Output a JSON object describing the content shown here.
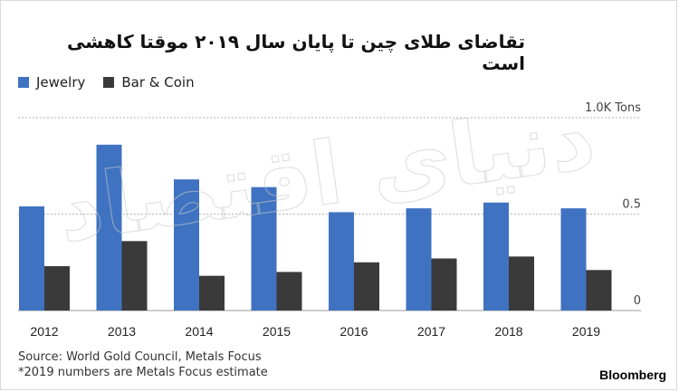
{
  "header": {
    "title": "تقاضای طلای چین تا پایان سال ۲۰۱۹ موقتا کاهشی است"
  },
  "legend": {
    "items": [
      {
        "label": "Jewelry",
        "color": "#3f73c1"
      },
      {
        "label": "Bar & Coin",
        "color": "#3a3a3a"
      }
    ]
  },
  "chart_data": {
    "type": "bar",
    "categories": [
      "2012",
      "2013",
      "2014",
      "2015",
      "2016",
      "2017",
      "2018",
      "2019"
    ],
    "series": [
      {
        "name": "Jewelry",
        "values": [
          0.54,
          0.86,
          0.68,
          0.64,
          0.51,
          0.53,
          0.56,
          0.53
        ],
        "color": "#3f73c1"
      },
      {
        "name": "Bar & Coin",
        "values": [
          0.23,
          0.36,
          0.18,
          0.2,
          0.25,
          0.27,
          0.28,
          0.21
        ],
        "color": "#3a3a3a"
      }
    ],
    "ylim": [
      0,
      1.0
    ],
    "yticks": [
      {
        "value": 0,
        "label": "0"
      },
      {
        "value": 0.5,
        "label": "0.5"
      },
      {
        "value": 1.0,
        "label": "1.0K Tons"
      }
    ],
    "grid": true,
    "legend_position": "top-left"
  },
  "footer": {
    "source": "Source: World Gold Council, Metals Focus",
    "note": "*2019 numbers are Metals Focus estimate"
  },
  "brand": "Bloomberg",
  "watermark": "دنیای اقتصاد"
}
